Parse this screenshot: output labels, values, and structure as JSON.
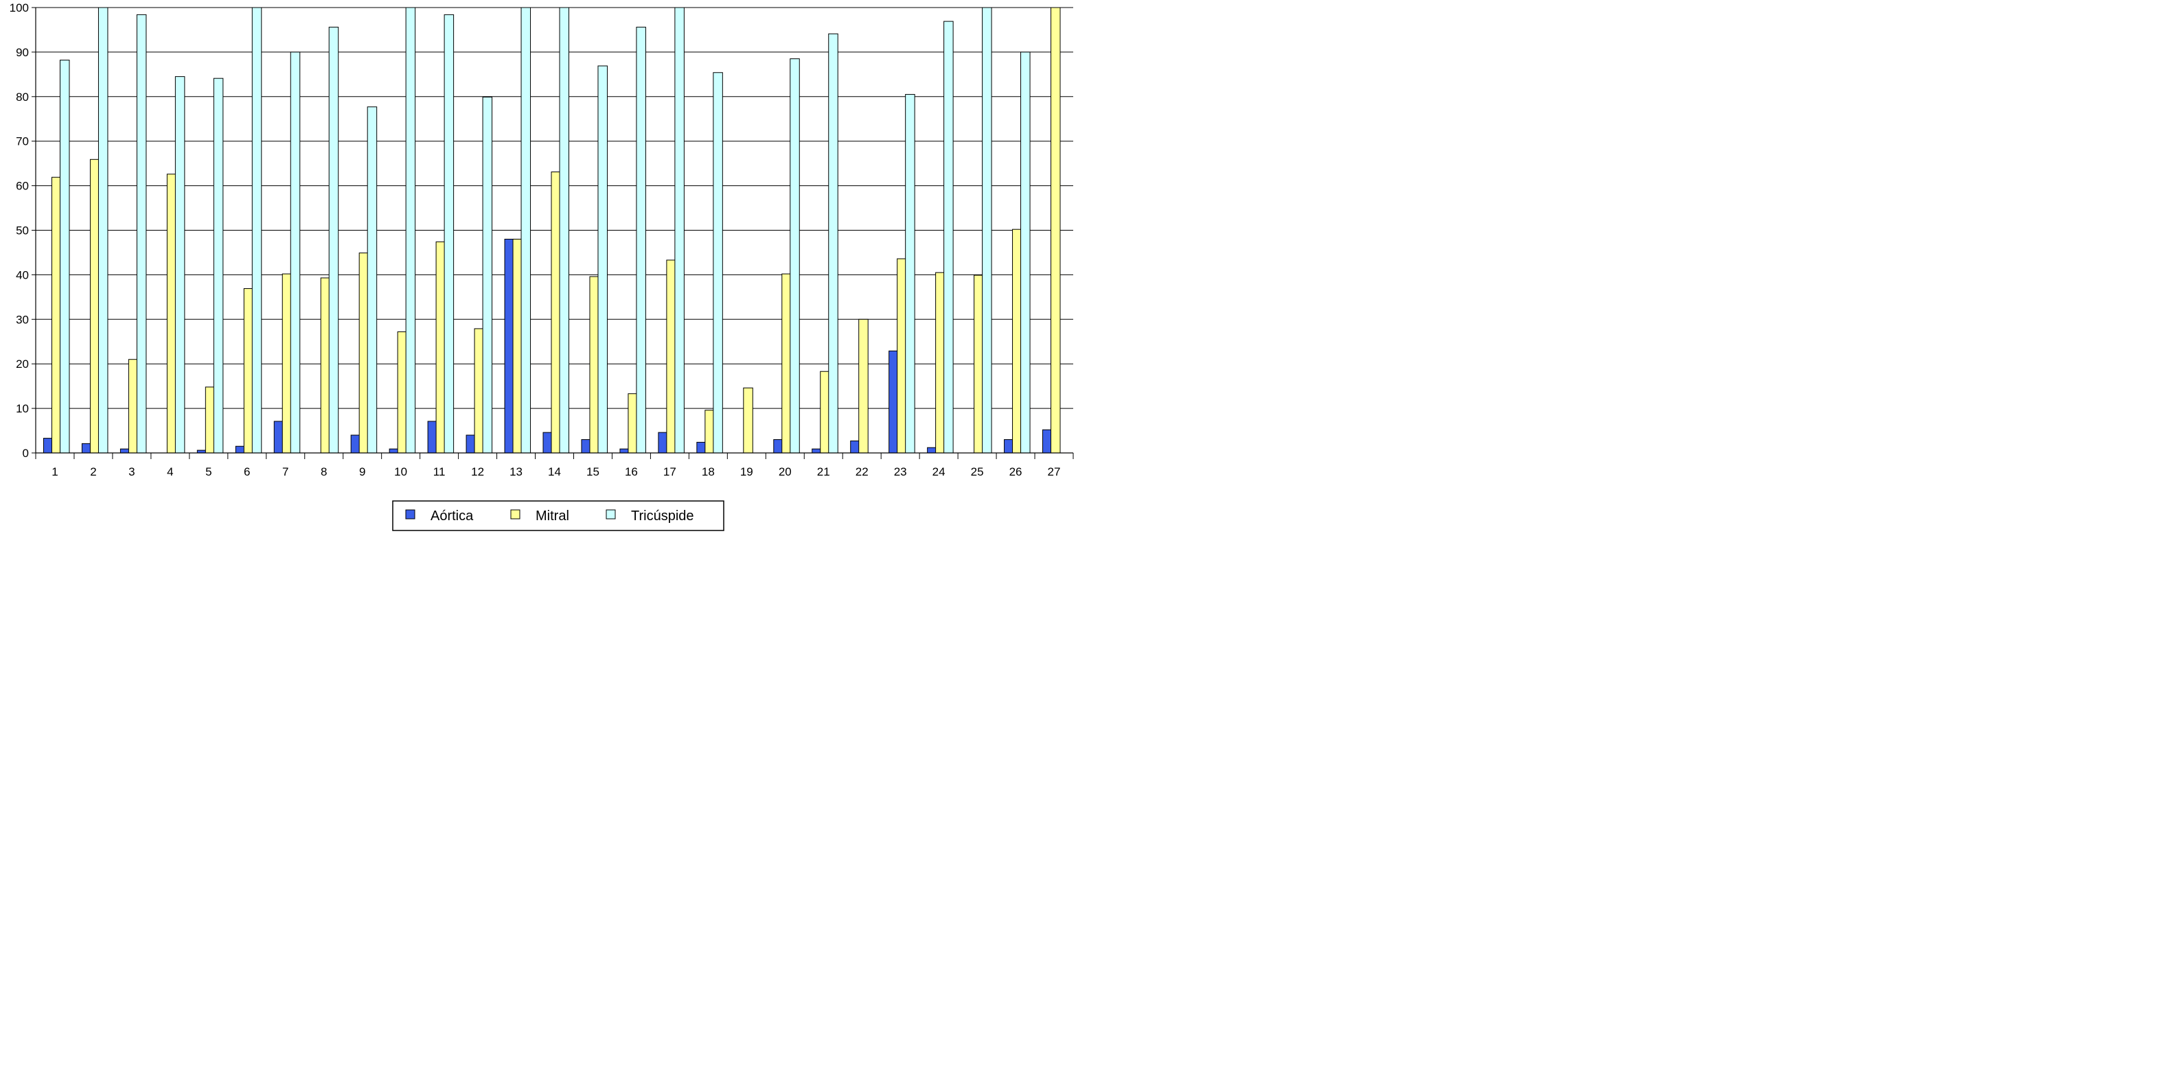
{
  "chart_data": {
    "type": "bar",
    "title": "",
    "xlabel": "",
    "ylabel": "",
    "ylim": [
      0,
      100
    ],
    "yticks": [
      0,
      10,
      20,
      30,
      40,
      50,
      60,
      70,
      80,
      90,
      100
    ],
    "grid": "horizontal",
    "legend_position": "bottom",
    "categories": [
      "1",
      "2",
      "3",
      "4",
      "5",
      "6",
      "7",
      "8",
      "9",
      "10",
      "11",
      "12",
      "13",
      "14",
      "15",
      "16",
      "17",
      "18",
      "19",
      "20",
      "21",
      "22",
      "23",
      "24",
      "25",
      "26",
      "27"
    ],
    "series": [
      {
        "name": "Aórtica",
        "color": "#3a5ee8",
        "values": [
          3.3,
          2.1,
          0.9,
          0,
          0.6,
          1.5,
          7.1,
          0,
          4,
          0.9,
          7.1,
          4,
          48,
          4.6,
          3,
          0.9,
          4.6,
          2.4,
          0,
          3,
          0.9,
          2.7,
          22.9,
          1.2,
          0,
          3,
          5.2
        ]
      },
      {
        "name": "Mitral",
        "color": "#ffff99",
        "values": [
          61.9,
          65.9,
          21,
          62.6,
          14.8,
          36.9,
          40.2,
          39.3,
          44.9,
          27.2,
          47.4,
          27.9,
          48,
          63.1,
          39.6,
          13.3,
          43.3,
          9.6,
          14.6,
          40.2,
          18.3,
          30,
          43.6,
          40.5,
          39.9,
          50.2,
          100
        ]
      },
      {
        "name": "Tricúspide",
        "color": "#ccffff",
        "values": [
          88.2,
          100,
          98.4,
          84.5,
          84.1,
          100,
          90,
          95.6,
          77.7,
          100,
          98.4,
          79.9,
          100,
          100,
          86.9,
          95.6,
          100,
          85.4,
          0,
          88.5,
          94.1,
          0,
          80.5,
          96.9,
          100,
          90,
          0
        ]
      }
    ]
  }
}
